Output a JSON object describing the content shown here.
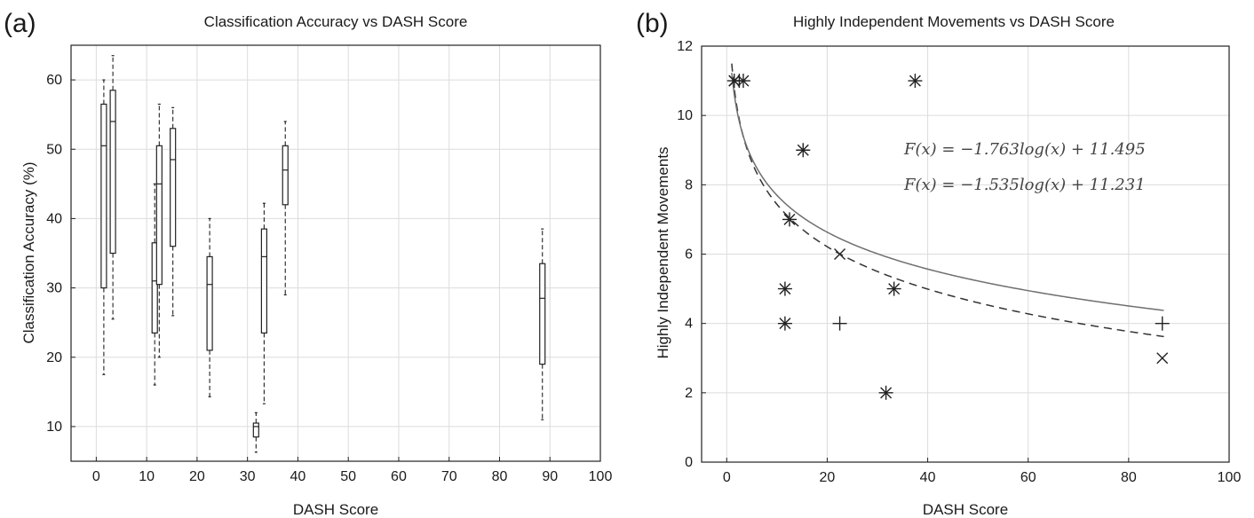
{
  "panels": {
    "a": {
      "label": "(a)"
    },
    "b": {
      "label": "(b)"
    }
  },
  "chart_data": [
    {
      "type": "box",
      "title": "Classification Accuracy vs DASH Score",
      "xlabel": "DASH Score",
      "ylabel": "Classification Accuracy (%)",
      "xlim": [
        -5,
        100
      ],
      "ylim": [
        5,
        65
      ],
      "xticks": [
        0,
        10,
        20,
        30,
        40,
        50,
        60,
        70,
        80,
        90,
        100
      ],
      "yticks": [
        10,
        20,
        30,
        40,
        50,
        60
      ],
      "grid": true,
      "boxes": [
        {
          "x": 1.5,
          "whisker_low": 17.5,
          "q1": 30,
          "median": 50.5,
          "q3": 56.5,
          "whisker_high": 60
        },
        {
          "x": 3.3,
          "whisker_low": 25.5,
          "q1": 35,
          "median": 54,
          "q3": 58.5,
          "whisker_high": 63.5
        },
        {
          "x": 11.6,
          "whisker_low": 16,
          "q1": 23.5,
          "median": 31,
          "q3": 36.5,
          "whisker_high": 45
        },
        {
          "x": 12.5,
          "whisker_low": 20,
          "q1": 30.5,
          "median": 45,
          "q3": 50.5,
          "whisker_high": 56.5
        },
        {
          "x": 15.2,
          "whisker_low": 26,
          "q1": 36,
          "median": 48.5,
          "q3": 53,
          "whisker_high": 56
        },
        {
          "x": 22.5,
          "whisker_low": 14.3,
          "q1": 21,
          "median": 30.5,
          "q3": 34.5,
          "whisker_high": 40
        },
        {
          "x": 31.7,
          "whisker_low": 6.3,
          "q1": 8.5,
          "median": 10,
          "q3": 10.5,
          "whisker_high": 12
        },
        {
          "x": 33.3,
          "whisker_low": 13.3,
          "q1": 23.5,
          "median": 34.5,
          "q3": 38.5,
          "whisker_high": 42.2
        },
        {
          "x": 37.5,
          "whisker_low": 29,
          "q1": 42,
          "median": 47,
          "q3": 50.5,
          "whisker_high": 54
        },
        {
          "x": 88.5,
          "whisker_low": 11,
          "q1": 19,
          "median": 28.5,
          "q3": 33.5,
          "whisker_high": 38.5
        }
      ]
    },
    {
      "type": "scatter",
      "title": "Highly Independent Movements vs DASH Score",
      "xlabel": "DASH Score",
      "ylabel": "Highly Independent Movements",
      "xlim": [
        -5,
        100
      ],
      "ylim": [
        0,
        12
      ],
      "xticks": [
        0,
        20,
        40,
        60,
        80,
        100
      ],
      "yticks": [
        0,
        2,
        4,
        6,
        8,
        10,
        12
      ],
      "grid": true,
      "series": [
        {
          "marker": "asterisk",
          "points": [
            [
              1.5,
              11
            ],
            [
              3.3,
              11
            ],
            [
              11.6,
              5
            ],
            [
              11.6,
              4
            ],
            [
              12.5,
              7
            ],
            [
              15.2,
              9
            ],
            [
              31.7,
              2
            ],
            [
              33.3,
              5
            ],
            [
              37.5,
              11
            ]
          ]
        },
        {
          "marker": "x",
          "points": [
            [
              1.5,
              11
            ],
            [
              22.5,
              6
            ],
            [
              86.7,
              3
            ]
          ]
        },
        {
          "marker": "plus",
          "points": [
            [
              2.5,
              11
            ],
            [
              22.5,
              4
            ],
            [
              86.7,
              4
            ]
          ]
        }
      ],
      "fits": [
        {
          "label": "F(x) = −1.763log(x) + 11.495",
          "a": -1.763,
          "b": 11.495,
          "style": "dashed",
          "color": "#333333"
        },
        {
          "label": "F(x) = −1.535log(x) + 11.231",
          "a": -1.535,
          "b": 11.231,
          "style": "solid",
          "color": "#6e6e6e"
        }
      ]
    }
  ]
}
